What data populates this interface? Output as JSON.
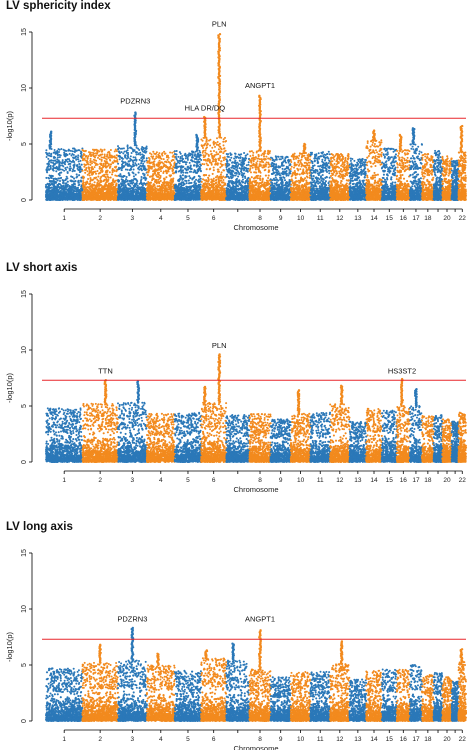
{
  "figure": {
    "colors": {
      "odd_chrom": "#2b78b8",
      "even_chrom": "#f28a1e",
      "threshold": "#e8262b",
      "axis": "#000000"
    }
  },
  "chart_data": [
    {
      "type": "scatter",
      "title": "LV sphericity index",
      "xlabel": "Chromosome",
      "ylabel": "-log10(p)",
      "ylim": [
        0,
        15
      ],
      "yticks": [
        0,
        5,
        10,
        15
      ],
      "threshold": 7.3,
      "chromosomes": [
        "1",
        "2",
        "3",
        "4",
        "5",
        "6",
        "7",
        "8",
        "9",
        "10",
        "11",
        "12",
        "13",
        "14",
        "15",
        "16",
        "17",
        "18",
        "19",
        "20",
        "21",
        "22"
      ],
      "tick_labels": [
        "1",
        "2",
        "3",
        "4",
        "5",
        "6",
        "8",
        "9",
        "10",
        "11",
        "12",
        "13",
        "14",
        "15",
        "16",
        "17",
        "18",
        "20",
        "22"
      ],
      "baseline_max": [
        4.6,
        4.5,
        4.9,
        4.3,
        4.4,
        5.6,
        4.2,
        4.4,
        3.9,
        4.2,
        4.3,
        4.1,
        3.7,
        5.4,
        4.6,
        4.5,
        5.0,
        4.1,
        4.4,
        3.9,
        3.5,
        4.3
      ],
      "peaks": [
        {
          "chrom": "1",
          "pos": 0.12,
          "value": 6.1
        },
        {
          "chrom": "3",
          "pos": 0.6,
          "value": 7.8
        },
        {
          "chrom": "5",
          "pos": 0.85,
          "value": 5.8
        },
        {
          "chrom": "6",
          "pos": 0.15,
          "value": 7.4
        },
        {
          "chrom": "6",
          "pos": 0.72,
          "value": 14.8
        },
        {
          "chrom": "8",
          "pos": 0.5,
          "value": 9.3
        },
        {
          "chrom": "10",
          "pos": 0.7,
          "value": 5.0
        },
        {
          "chrom": "14",
          "pos": 0.5,
          "value": 6.2
        },
        {
          "chrom": "16",
          "pos": 0.3,
          "value": 5.8
        },
        {
          "chrom": "17",
          "pos": 0.3,
          "value": 6.4
        },
        {
          "chrom": "22",
          "pos": 0.4,
          "value": 6.6
        }
      ],
      "annotations": [
        {
          "label": "PDZRN3",
          "chrom": "3",
          "pos": 0.6,
          "y": 8.6
        },
        {
          "label": "HLA DR/DQ",
          "chrom": "6",
          "pos": 0.15,
          "y": 8.0
        },
        {
          "label": "PLN",
          "chrom": "6",
          "pos": 0.72,
          "y": 15.5
        },
        {
          "label": "ANGPT1",
          "chrom": "8",
          "pos": 0.5,
          "y": 10.0
        }
      ]
    },
    {
      "type": "scatter",
      "title": "LV short axis",
      "xlabel": "Chromosome",
      "ylabel": "-log10(p)",
      "ylim": [
        0,
        15
      ],
      "yticks": [
        0,
        5,
        10,
        15
      ],
      "threshold": 7.3,
      "chromosomes": [
        "1",
        "2",
        "3",
        "4",
        "5",
        "6",
        "7",
        "8",
        "9",
        "10",
        "11",
        "12",
        "13",
        "14",
        "15",
        "16",
        "17",
        "18",
        "19",
        "20",
        "21",
        "22"
      ],
      "tick_labels": [
        "1",
        "2",
        "3",
        "4",
        "5",
        "6",
        "8",
        "9",
        "10",
        "11",
        "12",
        "13",
        "14",
        "15",
        "16",
        "17",
        "18",
        "20",
        "22"
      ],
      "baseline_max": [
        4.8,
        5.2,
        5.3,
        4.3,
        4.4,
        5.3,
        4.2,
        4.3,
        3.8,
        4.3,
        4.4,
        5.2,
        3.6,
        4.8,
        4.6,
        5.0,
        5.0,
        4.1,
        4.2,
        3.8,
        3.6,
        4.4
      ],
      "peaks": [
        {
          "chrom": "2",
          "pos": 0.65,
          "value": 7.3
        },
        {
          "chrom": "3",
          "pos": 0.7,
          "value": 7.2
        },
        {
          "chrom": "6",
          "pos": 0.15,
          "value": 6.7
        },
        {
          "chrom": "6",
          "pos": 0.72,
          "value": 9.6
        },
        {
          "chrom": "10",
          "pos": 0.4,
          "value": 6.4
        },
        {
          "chrom": "12",
          "pos": 0.6,
          "value": 6.8
        },
        {
          "chrom": "16",
          "pos": 0.4,
          "value": 7.4
        },
        {
          "chrom": "17",
          "pos": 0.5,
          "value": 6.5
        }
      ],
      "annotations": [
        {
          "label": "TTN",
          "chrom": "2",
          "pos": 0.65,
          "y": 7.9
        },
        {
          "label": "PLN",
          "chrom": "6",
          "pos": 0.72,
          "y": 10.2
        },
        {
          "label": "HS3ST2",
          "chrom": "16",
          "pos": 0.4,
          "y": 7.9
        }
      ]
    },
    {
      "type": "scatter",
      "title": "LV long axis",
      "xlabel": "Chromosome",
      "ylabel": "-log10(p)",
      "ylim": [
        0,
        15
      ],
      "yticks": [
        0,
        5,
        10,
        15
      ],
      "threshold": 7.3,
      "chromosomes": [
        "1",
        "2",
        "3",
        "4",
        "5",
        "6",
        "7",
        "8",
        "9",
        "10",
        "11",
        "12",
        "13",
        "14",
        "15",
        "16",
        "17",
        "18",
        "19",
        "20",
        "21",
        "22"
      ],
      "tick_labels": [
        "1",
        "2",
        "3",
        "4",
        "5",
        "6",
        "8",
        "9",
        "10",
        "11",
        "12",
        "13",
        "14",
        "15",
        "16",
        "17",
        "18",
        "20",
        "22"
      ],
      "baseline_max": [
        4.7,
        5.2,
        5.4,
        5.0,
        4.5,
        5.6,
        5.4,
        4.6,
        3.9,
        4.4,
        4.4,
        5.1,
        3.7,
        4.5,
        4.6,
        4.6,
        5.0,
        4.1,
        4.3,
        3.9,
        3.5,
        5.3
      ],
      "peaks": [
        {
          "chrom": "2",
          "pos": 0.5,
          "value": 6.8
        },
        {
          "chrom": "3",
          "pos": 0.5,
          "value": 8.3
        },
        {
          "chrom": "4",
          "pos": 0.4,
          "value": 6.0
        },
        {
          "chrom": "6",
          "pos": 0.2,
          "value": 6.3
        },
        {
          "chrom": "7",
          "pos": 0.3,
          "value": 6.9
        },
        {
          "chrom": "8",
          "pos": 0.5,
          "value": 8.1
        },
        {
          "chrom": "12",
          "pos": 0.6,
          "value": 7.1
        },
        {
          "chrom": "22",
          "pos": 0.4,
          "value": 6.4
        }
      ],
      "annotations": [
        {
          "label": "PDZRN3",
          "chrom": "3",
          "pos": 0.5,
          "y": 8.9
        },
        {
          "label": "ANGPT1",
          "chrom": "8",
          "pos": 0.5,
          "y": 8.9
        }
      ]
    }
  ]
}
